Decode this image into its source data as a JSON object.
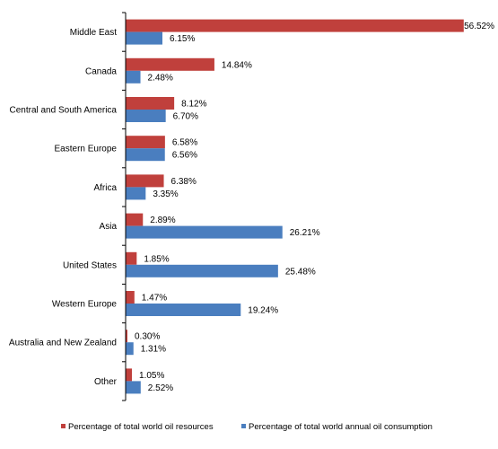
{
  "chart_data": {
    "type": "bar",
    "orientation": "horizontal",
    "categories": [
      "Middle East",
      "Canada",
      "Central and South America",
      "Eastern Europe",
      "Africa",
      "Asia",
      "United States",
      "Western Europe",
      "Australia and New Zealand",
      "Other"
    ],
    "series": [
      {
        "name": "Percentage of total world oil resources",
        "color": "#c0403c",
        "values": [
          56.52,
          14.84,
          8.12,
          6.58,
          6.38,
          2.89,
          1.85,
          1.47,
          0.3,
          1.05
        ],
        "labels": [
          "56.52%",
          "14.84%",
          "8.12%",
          "6.58%",
          "6.38%",
          "2.89%",
          "1.85%",
          "1.47%",
          "0.30%",
          "1.05%"
        ]
      },
      {
        "name": "Percentage of total world annual oil consumption",
        "color": "#4a7ebf",
        "values": [
          6.15,
          2.48,
          6.7,
          6.56,
          3.35,
          26.21,
          25.48,
          19.24,
          1.31,
          2.52
        ],
        "labels": [
          "6.15%",
          "2.48%",
          "6.70%",
          "6.56%",
          "3.35%",
          "26.21%",
          "25.48%",
          "19.24%",
          "1.31%",
          "2.52%"
        ]
      }
    ],
    "title": "",
    "xlabel": "",
    "ylabel": "",
    "xlim": [
      0,
      60
    ],
    "grid": false,
    "legend_position": "bottom"
  }
}
